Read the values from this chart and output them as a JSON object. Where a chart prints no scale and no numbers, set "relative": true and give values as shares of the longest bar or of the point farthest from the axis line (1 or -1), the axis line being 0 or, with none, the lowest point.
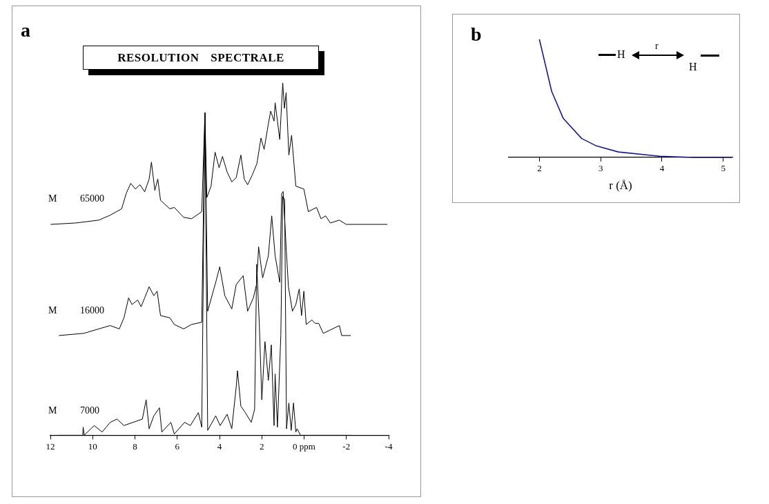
{
  "chart_data": [
    {
      "type": "line",
      "title": "RESOLUTION SPECTRALE",
      "annotations": [
        "a"
      ],
      "relative": true,
      "xlim": [
        12,
        -4
      ],
      "series": [
        {
          "name": "M 65000",
          "color": "#000000",
          "x": [
            11.99,
            10.8,
            9.71,
            9.17,
            8.63,
            8.41,
            8.2,
            7.98,
            7.76,
            7.54,
            7.33,
            7.22,
            7.06,
            6.92,
            6.79,
            6.35,
            6.14,
            5.7,
            5.32,
            4.84,
            4.69,
            4.6,
            4.4,
            4.21,
            4.02,
            3.86,
            3.64,
            3.42,
            3.21,
            2.99,
            2.83,
            2.67,
            2.45,
            2.23,
            2.04,
            1.89,
            1.69,
            1.58,
            1.42,
            1.37,
            1.15,
            1.01,
            0.93,
            0.85,
            0.72,
            0.59,
            0.39,
            0.01,
            -0.2,
            -0.59,
            -0.8,
            -1.02,
            -1.24,
            -1.67,
            -1.99,
            -3.94
          ],
          "values": [
            0,
            0.01,
            0.03,
            0.065,
            0.11,
            0.22,
            0.29,
            0.25,
            0.28,
            0.23,
            0.32,
            0.44,
            0.24,
            0.32,
            0.17,
            0.11,
            0.12,
            0.05,
            0.04,
            0.09,
            0.79,
            0.19,
            0.27,
            0.51,
            0.4,
            0.48,
            0.37,
            0.3,
            0.33,
            0.49,
            0.32,
            0.28,
            0.35,
            0.43,
            0.61,
            0.53,
            0.71,
            0.8,
            0.73,
            0.86,
            0.6,
            1,
            0.82,
            0.93,
            0.49,
            0.63,
            0.27,
            0.25,
            0.09,
            0.12,
            0.04,
            0.06,
            0.01,
            0.03,
            0,
            0
          ]
        }
      ]
    },
    {
      "type": "line",
      "relative": true,
      "xlim": [
        12,
        -4
      ],
      "series": [
        {
          "name": "M 16000",
          "color": "#000000",
          "x": [
            11.6,
            10.42,
            9.71,
            9.17,
            8.74,
            8.52,
            8.3,
            8.14,
            7.87,
            7.71,
            7.54,
            7.33,
            7.11,
            6.95,
            6.79,
            6.35,
            6.14,
            5.7,
            5.32,
            4.84,
            4.69,
            4.56,
            4.18,
            3.99,
            3.75,
            3.42,
            3.21,
            2.88,
            2.67,
            2.4,
            2.25,
            2.15,
            1.96,
            1.69,
            1.53,
            1.37,
            1.15,
            1.06,
            0.99,
            0.85,
            0.74,
            0.55,
            0.39,
            0.23,
            0.12,
            0.01,
            -0.1,
            -0.37,
            -0.53,
            -0.69,
            -0.91,
            -1.67,
            -1.78,
            -2.21
          ],
          "values": [
            0,
            0.01,
            0.03,
            0.045,
            0.03,
            0.08,
            0.17,
            0.14,
            0.16,
            0.13,
            0.17,
            0.22,
            0.18,
            0.2,
            0.09,
            0.08,
            0.05,
            0.03,
            0.05,
            0.06,
            1,
            0.11,
            0.24,
            0.31,
            0.18,
            0.12,
            0.23,
            0.27,
            0.11,
            0.17,
            0.23,
            0.4,
            0.26,
            0.36,
            0.54,
            0.36,
            0.24,
            0.64,
            0.65,
            0.4,
            0.22,
            0.11,
            0.14,
            0.21,
            0.09,
            0.2,
            0.05,
            0.07,
            0.055,
            0.055,
            0.01,
            0.045,
            0,
            0
          ]
        }
      ]
    },
    {
      "type": "line",
      "relative": true,
      "xlim": [
        12,
        -4
      ],
      "xticks": [
        12,
        10,
        8,
        6,
        4,
        2,
        {
          "value": 0,
          "label": "0 ppm"
        },
        -2,
        -4
      ],
      "series": [
        {
          "name": "M 7000",
          "color": "#000000",
          "x": [
            11.66,
            10.47,
            10.45,
            10.4,
            9.93,
            9.55,
            9.17,
            8.85,
            8.52,
            8.09,
            7.65,
            7.47,
            7.33,
            7.11,
            6.84,
            6.73,
            6.3,
            6.14,
            5.65,
            5.38,
            5,
            4.84,
            4.69,
            4.56,
            4.18,
            3.97,
            3.64,
            3.42,
            3.21,
            3.15,
            2.99,
            2.78,
            2.5,
            2.34,
            2.24,
            2.12,
            2,
            1.85,
            1.69,
            1.55,
            1.42,
            1.37,
            1.26,
            1.1,
            1.01,
            0.92,
            0.83,
            0.72,
            0.61,
            0.5,
            0.39,
            0.33,
            0.17,
            -2.21
          ],
          "values": [
            0,
            0,
            0.025,
            0,
            0.03,
            0.01,
            0.04,
            0.05,
            0.03,
            0.04,
            0.05,
            0.11,
            0.02,
            0.06,
            0.085,
            0.01,
            0.04,
            0.004,
            0.04,
            0.03,
            0.07,
            0.025,
            1,
            0.015,
            0.06,
            0.03,
            0.065,
            0.02,
            0.15,
            0.2,
            0.09,
            0.07,
            0.04,
            0.08,
            0.53,
            0.35,
            0.11,
            0.29,
            0.17,
            0.28,
            0.03,
            0.19,
            0.025,
            0.31,
            0.74,
            0.73,
            0.02,
            0.1,
            0.015,
            0.1,
            0.01,
            0.02,
            0,
            0
          ]
        }
      ]
    },
    {
      "type": "line",
      "relative": true,
      "annotations": [
        "b",
        "H",
        "r",
        "H"
      ],
      "xlabel": "r (Å)",
      "xlim": [
        1.5,
        5.15
      ],
      "xticks": [
        2,
        3,
        4,
        5
      ],
      "series": [
        {
          "color": "#1a1a8c",
          "x": [
            2,
            2.2,
            2.39,
            2.69,
            2.92,
            3.29,
            3.96,
            4.52,
            5.14
          ],
          "values": [
            1,
            0.56,
            0.33,
            0.16,
            0.1,
            0.046,
            0.01,
            0,
            0
          ]
        }
      ]
    }
  ]
}
